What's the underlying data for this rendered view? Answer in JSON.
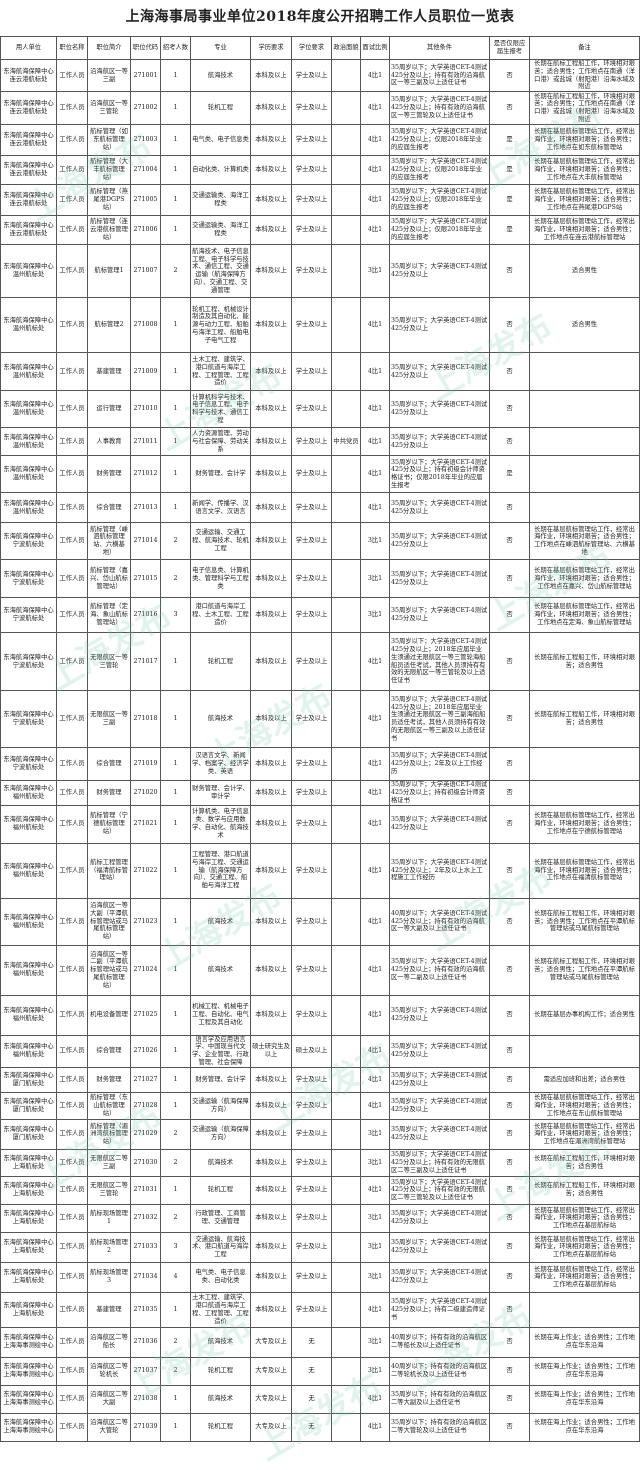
{
  "title": "上海海事局事业单位2018年度公开招聘工作人员职位一览表",
  "watermark": "上海发布",
  "headers": [
    "用人单位",
    "职位名称",
    "职位简介",
    "职位代码",
    "招考人数",
    "专业",
    "学历要求",
    "学位要求",
    "政治面貌",
    "面试比例",
    "其他条件",
    "是否仅限应届生报考",
    "备注"
  ],
  "rows": [
    [
      "东海航海保障中心连云港航标处",
      "工作人员",
      "沿海航区一等三副",
      "271001",
      "1",
      "航海技术",
      "本科及以上",
      "学士及以上",
      "",
      "4比1",
      "35周岁以下；大学英语CET-4测试425分及以上；持有有效的沿海航区一等三副及以上适任证书",
      "否",
      "长期在航标工程船工作，环境相对艰苦；适合男性；工作地点在南通（洋口港）或盐城（射阳港）沿海水域及附近"
    ],
    [
      "东海航海保障中心连云港航标处",
      "工作人员",
      "沿海航区一等三管轮",
      "271002",
      "1",
      "轮机工程",
      "本科及以上",
      "学士及以上",
      "",
      "4比1",
      "35周岁以下；大学英语CET-4测试425分及以上；持有有效的沿海航区一等三管轮及以上适任证书",
      "否",
      "长期在航标工程船工作，环境相对艰苦；适合男性；工作地点在南通（洋口港）或盐城（射阳港）沿海水域及附近"
    ],
    [
      "东海航海保障中心连云港航标处",
      "工作人员",
      "航标管理（如东航标管理站）",
      "271003",
      "1",
      "电气类、电子信息类",
      "本科及以上",
      "学士及以上",
      "",
      "4比1",
      "35周岁以下；大学英语CET-4测试425分及以上；仅限2018年毕业的应届生报考",
      "是",
      "长期在基层航标管理站工作，经常出海作业，环境相对艰苦；适合男性；工作地点在如东航标管理站"
    ],
    [
      "东海航海保障中心连云港航标处",
      "工作人员",
      "航标管理（大丰航标管理站）",
      "271004",
      "1",
      "自动化类、计算机类",
      "本科及以上",
      "学士及以上",
      "",
      "4比1",
      "35周岁以下；大学英语CET-4测试425分及以上；仅限2018年毕业的应届生报考",
      "是",
      "长期在基层航标管理站工作，经常出海作业，环境相对艰苦；适合男性；工作地点在大丰航标管理站"
    ],
    [
      "东海航海保障中心连云港航标处",
      "工作人员",
      "航标管理（燕尾港DGPS站）",
      "271005",
      "1",
      "交通运输类、海洋工程类",
      "本科及以上",
      "学士及以上",
      "",
      "4比1",
      "35周岁以下；大学英语CET-4测试425分及以上；仅限2018年毕业的应届生报考",
      "是",
      "长期在基层航标管理站工作，经常出海作业，环境相对艰苦；适合男性；工作地点在燕尾港DGPS站"
    ],
    [
      "东海航海保障中心连云港航标处",
      "工作人员",
      "航标管理（连云港航标管理站）",
      "271006",
      "1",
      "交通运输类、海洋工程类",
      "本科及以上",
      "学士及以上",
      "",
      "4比1",
      "35周岁以下；大学英语CET-4测试425分及以上；仅限2018年毕业的应届生报考",
      "是",
      "长期在基层航标管理站工作，经常出海作业，环境相对艰苦；适合男性；工作地点在连云港航标管理站"
    ],
    [
      "东海航海保障中心温州航标处",
      "工作人员",
      "航标管理1",
      "271007",
      "2",
      "航海技术、电子信息工程、电子科学与技术、通信工程、交通运输（航海保障方向）、交通工程、交通管理",
      "本科及以上",
      "学士及以上",
      "",
      "3比1",
      "35周岁以下；大学英语CET-4测试425分及以上",
      "否",
      "适合男性"
    ],
    [
      "东海航海保障中心温州航标处",
      "工作人员",
      "航标管理2",
      "271008",
      "1",
      "轮机工程、机械设计制造及其自动化、能源与动力工程、船舶与海洋工程、船舶电子电气工程",
      "本科及以上",
      "学士及以上",
      "",
      "4比1",
      "35周岁以下；大学英语CET-4测试425分及以上",
      "否",
      "适合男性"
    ],
    [
      "东海航海保障中心温州航标处",
      "工作人员",
      "基建管理",
      "271009",
      "1",
      "土木工程、建筑学、港口航道与海岸工程、工程管理、工程造价",
      "本科及以上",
      "学士及以上",
      "",
      "4比1",
      "35周岁以下；大学英语CET-4测试425分及以上",
      "否",
      ""
    ],
    [
      "东海航海保障中心温州航标处",
      "工作人员",
      "运行管理",
      "271010",
      "1",
      "计算机科学与技术、电子信息工程、电子科学与技术、通信工程",
      "本科及以上",
      "学士及以上",
      "",
      "4比1",
      "35周岁以下；大学英语CET-4测试425分及以上",
      "否",
      ""
    ],
    [
      "东海航海保障中心温州航标处",
      "工作人员",
      "人事教育",
      "271011",
      "1",
      "人力资源管理、劳动与社会保障、劳动关系",
      "本科及以上",
      "学士及以上",
      "中共党员",
      "4比1",
      "35周岁以下；大学英语CET-4测试425分及以上",
      "否",
      ""
    ],
    [
      "东海航海保障中心温州航标处",
      "工作人员",
      "财务管理",
      "271012",
      "1",
      "财务管理、会计学",
      "本科及以上",
      "学士及以上",
      "",
      "4比1",
      "35周岁以下；大学英语CET-4测试425分及以上；持有初级会计师资格证书；仅限2018年毕业的应届生报考",
      "是",
      ""
    ],
    [
      "东海航海保障中心温州航标处",
      "工作人员",
      "综合管理",
      "271013",
      "1",
      "新闻学、传播学、汉语言文学、汉语言",
      "本科及以上",
      "学士及以上",
      "",
      "4比1",
      "35周岁以下；大学英语CET-4测试425分及以上",
      "否",
      ""
    ],
    [
      "东海航海保障中心宁波航标处",
      "工作人员",
      "航标管理（嵊泗航标管理站、六横基地）",
      "271014",
      "2",
      "交通运输、交通工程、航海技术、轮机工程",
      "本科及以上",
      "学士及以上",
      "",
      "3比1",
      "35周岁以下；大学英语CET-4测试425分及以上",
      "否",
      "长期在基层航标管理站工作，经常出海作业，环境相对艰苦；适合男性；工作地点在嵊泗航标管理站、六横基地"
    ],
    [
      "东海航海保障中心宁波航标处",
      "工作人员",
      "航标管理（嘉兴、岱山航标管理站）",
      "271015",
      "2",
      "电子信息类、计算机类、管理科学与工程类",
      "本科及以上",
      "学士及以上",
      "",
      "3比1",
      "35周岁以下；大学英语CET-4测试425分及以上",
      "否",
      "长期在基层航标管理站工作，经常出海作业，环境相对艰苦；适合男性；工作地点在嘉兴、岱山航标管理站"
    ],
    [
      "东海航海保障中心宁波航标处",
      "工作人员",
      "航标管理（定海、象山航标管理站）",
      "271016",
      "3",
      "港口航道与海岸工程、土木工程、工程造价",
      "本科及以上",
      "学士及以上",
      "",
      "3比1",
      "35周岁以下；大学英语CET-4测试425分及以上",
      "否",
      "长期在基层航标管理站工作，经常出海作业，环境相对艰苦；适合男性；工作地点在定海、象山航标管理站"
    ],
    [
      "东海航海保障中心宁波航标处",
      "工作人员",
      "无限航区一等三管轮",
      "271017",
      "1",
      "轮机工程",
      "本科及以上",
      "学士及以上",
      "",
      "4比1",
      "35周岁以下；大学英语CET-4测试425分及以上；2018年应届毕业生须通过无限航区一等三管轮海船船员适任考试，其他人员须持有有效的无限航区一等三管轮及以上适任证书",
      "否",
      "长期在航标工程船工作，环境相对艰苦；适合男性"
    ],
    [
      "东海航海保障中心宁波航标处",
      "工作人员",
      "无限航区一等三副",
      "271018",
      "1",
      "航海技术",
      "本科及以上",
      "学士及以上",
      "",
      "4比1",
      "35周岁以下；大学英语CET-4测试425分及以上；2018年应届毕业生须通过无限航区一等三副海船船员适任考试，其他人员须持有有效的无限航区一等三副及以上适任证书",
      "否",
      "长期在航标工程船工作，环境相对艰苦；适合男性"
    ],
    [
      "东海航海保障中心宁波航标处",
      "工作人员",
      "综合管理",
      "271019",
      "1",
      "汉语言文学、新闻学、档案学、经济学类、英语",
      "本科及以上",
      "学士及以上",
      "",
      "4比1",
      "35周岁以下；大学英语CET-4测试425分及以上；2年及以上工作经历",
      "否",
      ""
    ],
    [
      "东海航海保障中心福州航标处",
      "工作人员",
      "财务管理",
      "271020",
      "1",
      "财务管理、会计学、审计学",
      "本科及以上",
      "学士及以上",
      "",
      "4比1",
      "35周岁以下；大学英语CET-4测试425分及以上；持有初级会计师资格证书",
      "否",
      ""
    ],
    [
      "东海航海保障中心福州航标处",
      "工作人员",
      "航标管理（宁德航标管理站）",
      "271021",
      "1",
      "计算机类、电子信息类、数学与应用数学、自动化、航海技术",
      "本科及以上",
      "学士及以上",
      "",
      "4比1",
      "35周岁以下；大学英语CET-4测试425分及以上",
      "否",
      "长期在基层航标管理站工作，经常出海作业，环境相对艰苦；适合男性；工作地点在宁德航标管理站"
    ],
    [
      "东海航海保障中心福州航标处",
      "工作人员",
      "航标工程管理（福清航标管理站）",
      "271022",
      "1",
      "工程管理、港口航道与海岸工程、交通运输（航海保障方向）、交通工程、船舶与海洋工程",
      "本科及以上",
      "学士及以上",
      "",
      "4比1",
      "35周岁以下；大学英语CET-4测试425分及以上；2年及以上水上工程施工工作经历",
      "否",
      "长期在基层航标管理站工作，经常出海作业，环境相对艰苦；适合男性；工作地点在福清航标管理站"
    ],
    [
      "东海航海保障中心福州航标处",
      "工作人员",
      "沿海航区一等大副（平潭航标管理站或马尾航标管理站）",
      "271023",
      "1",
      "航海技术",
      "本科及以上",
      "学士及以上",
      "",
      "4比1",
      "40周岁以下；大学英语CET-4测试425分及以上；持有有效的沿海航区一等大副及以上适任证书",
      "否",
      "长期在航标工程船工作，环境相对艰苦；适合男性；工作地点在平潭航标管理站或马尾航标管理站"
    ],
    [
      "东海航海保障中心福州航标处",
      "工作人员",
      "沿海航区一等二副（平潭航标管理站或马尾航标管理站）",
      "271024",
      "1",
      "航海技术",
      "本科及以上",
      "学士及以上",
      "",
      "4比1",
      "35周岁以下；大学英语CET-4测试425分及以上；持有有效的沿海航区一等二副及以上适任证书",
      "否",
      "长期在航标工程船工作，环境相对艰苦；适合男性；工作地点在平潭航标管理站或马尾航标管理站"
    ],
    [
      "东海航海保障中心福州航标处",
      "工作人员",
      "机电设备管理",
      "271025",
      "1",
      "机械工程、机械电子工程、自动化、电气工程及其自动化",
      "本科及以上",
      "学士及以上",
      "",
      "4比1",
      "35周岁以下；大学英语CET-4测试425分及以上",
      "否",
      "长期在基层办事机构工作；适合男性"
    ],
    [
      "东海航海保障中心福州航标处",
      "工作人员",
      "综合管理",
      "271026",
      "1",
      "语言学及应用语言学、中国现当代文学、企业管理、行政管理、社会保障",
      "硕士研究生及以上",
      "硕士及以上",
      "",
      "4比1",
      "35周岁以下；大学英语CET-4测试425分及以上",
      "否",
      ""
    ],
    [
      "东海航海保障中心厦门航标处",
      "工作人员",
      "财务管理",
      "271027",
      "1",
      "财务管理、会计学",
      "本科及以上",
      "学士及以上",
      "",
      "4比1",
      "35周岁以下；大学英语CET-4测试425分及以上",
      "否",
      "需适应加班和出差；适合男性"
    ],
    [
      "东海航海保障中心厦门航标处",
      "工作人员",
      "航标管理（东山航标管理站）",
      "271028",
      "1",
      "交通运输（航海保障方向）",
      "本科及以上",
      "学士及以上",
      "",
      "4比1",
      "35周岁以下；大学英语CET-4测试425分及以上",
      "否",
      "长期在基层航标管理站工作，经常出海作业，环境相对艰苦；适合男性；工作地点在东山航标管理站"
    ],
    [
      "东海航海保障中心厦门航标处",
      "工作人员",
      "航标管理（湄洲湾航标管理站）",
      "271029",
      "2",
      "交通运输（航海保障方向）",
      "本科及以上",
      "学士及以上",
      "",
      "3比1",
      "35周岁以下；大学英语CET-4测试425分及以上",
      "否",
      "长期在基层航标管理站工作，经常出海作业，环境相对艰苦；适合男性；工作地点在湄洲湾航标管理站"
    ],
    [
      "东海航海保障中心上海航标处",
      "工作人员",
      "无限航区二等三副",
      "271030",
      "2",
      "航海技术",
      "本科及以上",
      "学士及以上",
      "",
      "3比1",
      "35周岁以下；大学英语CET-4测试425分及以上；持有有效的无限航区二等三副及以上适任证书",
      "否",
      "长期在航标工程船工作，环境相对艰苦；适合男性"
    ],
    [
      "东海航海保障中心上海航标处",
      "工作人员",
      "无限航区二等三管轮",
      "271031",
      "1",
      "轮机工程",
      "本科及以上",
      "学士及以上",
      "",
      "4比1",
      "35周岁以下；大学英语CET-4测试425分及以上；持有有效的无限航区二等三管轮及以上适任证书",
      "否",
      "长期在航标工程船工作，环境相对艰苦；适合男性"
    ],
    [
      "东海航海保障中心上海航标处",
      "工作人员",
      "航标现场管理1",
      "271032",
      "2",
      "行政管理、工商管理、交通管理",
      "本科及以上",
      "学士及以上",
      "",
      "3比1",
      "35周岁以下；大学英语CET-4测试425分及以上",
      "否",
      "长期在基层航标管理站工作，经常出海作业，环境相对艰苦；适合男性；工作地点在基层航标站"
    ],
    [
      "东海航海保障中心上海航标处",
      "工作人员",
      "航标现场管理2",
      "271033",
      "3",
      "交通运输、航海技术、港口航道与海岸工程",
      "本科及以上",
      "学士及以上",
      "",
      "3比1",
      "35周岁以下；大学英语CET-4测试425分及以上",
      "否",
      "长期在基层航标管理站工作，经常出海作业，环境相对艰苦；适合男性；工作地点在基层航标站"
    ],
    [
      "东海航海保障中心上海航标处",
      "工作人员",
      "航标现场管理3",
      "271034",
      "4",
      "电气类、电子信息类、自动化类",
      "本科及以上",
      "学士及以上",
      "",
      "3比1",
      "35周岁以下；大学英语CET-4测试425分及以上",
      "否",
      "长期在基层航标管理站工作，经常出海作业，环境相对艰苦；适合男性；工作地点在基层航标站"
    ],
    [
      "东海航海保障中心上海航标处",
      "工作人员",
      "基建管理",
      "271035",
      "1",
      "土木工程、建筑学、港口航道与海岸工程、工程管理、工程造价",
      "本科及以上",
      "学士及以上",
      "",
      "4比1",
      "35周岁以下；大学英语CET-4测试425分及以上；持有二级建造师证书",
      "否",
      ""
    ],
    [
      "东海航海保障中心上海海事测绘中心",
      "工作人员",
      "沿海航区二等船长",
      "271036",
      "2",
      "航海技术",
      "大专及以上",
      "无",
      "",
      "3比1",
      "40周岁以下；持有有效的沿海航区二等船长及以上适任证书",
      "否",
      "长期在海上作业；适合男性；工作地点在华东沿海"
    ],
    [
      "东海航海保障中心上海海事测绘中心",
      "工作人员",
      "沿海航区二等轮机长",
      "271037",
      "2",
      "轮机工程",
      "大专及以上",
      "无",
      "",
      "3比1",
      "40周岁以下；持有有效的沿海航区二等轮机长及以上适任证书",
      "否",
      "长期在海上作业；适合男性；工作地点在华东沿海"
    ],
    [
      "东海航海保障中心上海海事测绘中心",
      "工作人员",
      "沿海航区二等大副",
      "271038",
      "1",
      "航海技术",
      "大专及以上",
      "无",
      "",
      "4比1",
      "35周岁以下；持有有效的沿海航区二等大副及以上适任证书",
      "否",
      "长期在海上作业；适合男性；工作地点在华东沿海"
    ],
    [
      "东海航海保障中心上海海事测绘中心",
      "工作人员",
      "沿海航区二等大管轮",
      "271039",
      "1",
      "轮机工程",
      "大专及以上",
      "无",
      "",
      "4比1",
      "35周岁以下；持有有效的沿海航区二等大管轮及以上适任证书",
      "否",
      "长期在海上作业；适合男性；工作地点在华东沿海"
    ]
  ]
}
